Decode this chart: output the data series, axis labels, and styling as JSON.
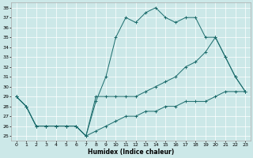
{
  "xlabel": "Humidex (Indice chaleur)",
  "xlim": [
    -0.5,
    23.5
  ],
  "ylim": [
    24.5,
    38.5
  ],
  "yticks": [
    25,
    26,
    27,
    28,
    29,
    30,
    31,
    32,
    33,
    34,
    35,
    36,
    37,
    38
  ],
  "xticks": [
    0,
    1,
    2,
    3,
    4,
    5,
    6,
    7,
    8,
    9,
    10,
    11,
    12,
    13,
    14,
    15,
    16,
    17,
    18,
    19,
    20,
    21,
    22,
    23
  ],
  "bg_color": "#cce8e8",
  "line_color": "#1a6b6b",
  "line1_y": [
    29,
    28,
    26,
    26,
    26,
    26,
    26,
    25,
    25.5,
    26,
    26.5,
    27,
    27,
    27.5,
    27.5,
    28,
    28,
    28.5,
    28.5,
    28.5,
    29,
    29.5,
    29.5,
    29.5
  ],
  "line2_y": [
    29,
    28,
    26,
    26,
    26,
    26,
    26,
    25,
    28.5,
    31,
    35,
    37,
    36.5,
    37.5,
    38,
    37,
    36.5,
    37,
    37,
    35,
    35,
    33,
    31,
    29.5
  ],
  "line3_y": [
    29,
    28,
    26,
    26,
    26,
    26,
    26,
    25,
    29,
    29,
    29,
    29,
    29,
    29.5,
    30,
    30.5,
    31,
    32,
    32.5,
    33.5,
    35,
    33,
    31,
    29.5
  ]
}
